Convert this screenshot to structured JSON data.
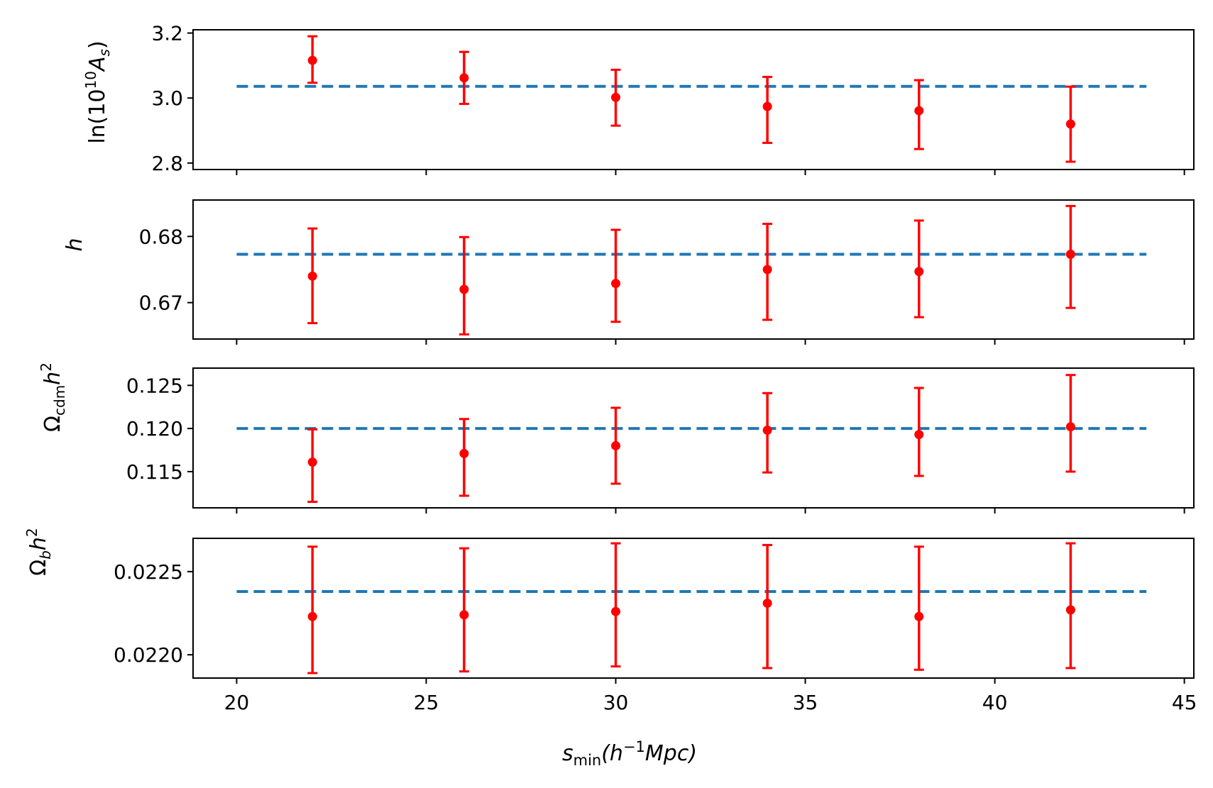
{
  "chart_data": [
    {
      "type": "scatter",
      "ylabel_parts": [
        "ln(10",
        "10",
        "A",
        "s",
        ")"
      ],
      "ylim": [
        2.78,
        3.21
      ],
      "yticks": [
        2.8,
        3.0,
        3.2
      ],
      "ytick_labels": [
        "2.8",
        "3.0",
        "3.2"
      ],
      "x": [
        22,
        26,
        30,
        34,
        38,
        42
      ],
      "values": [
        3.116,
        3.062,
        3.002,
        2.974,
        2.961,
        2.92
      ],
      "err_low": [
        3.047,
        2.982,
        2.915,
        2.862,
        2.843,
        2.804
      ],
      "err_high": [
        3.19,
        3.142,
        3.087,
        3.065,
        3.055,
        3.035
      ],
      "reference": 3.036,
      "xticks_labeled": false
    },
    {
      "type": "scatter",
      "ylabel_parts": [
        "h"
      ],
      "ylim": [
        0.6645,
        0.6855
      ],
      "yticks": [
        0.67,
        0.68
      ],
      "ytick_labels": [
        "0.67",
        "0.68"
      ],
      "x": [
        22,
        26,
        30,
        34,
        38,
        42
      ],
      "values": [
        0.674,
        0.672,
        0.6729,
        0.675,
        0.6747,
        0.6773
      ],
      "err_low": [
        0.6669,
        0.6652,
        0.6671,
        0.6674,
        0.6678,
        0.6692
      ],
      "err_high": [
        0.6812,
        0.6799,
        0.681,
        0.6819,
        0.6824,
        0.6846
      ],
      "reference": 0.6773,
      "xticks_labeled": false
    },
    {
      "type": "scatter",
      "ylabel_parts": [
        "Ω",
        "cdm",
        "h",
        "2"
      ],
      "ylim": [
        0.1108,
        0.127
      ],
      "yticks": [
        0.115,
        0.12,
        0.125
      ],
      "ytick_labels": [
        "0.115",
        "0.120",
        "0.125"
      ],
      "x": [
        22,
        26,
        30,
        34,
        38,
        42
      ],
      "values": [
        0.1161,
        0.1171,
        0.118,
        0.1198,
        0.1193,
        0.1202
      ],
      "err_low": [
        0.1115,
        0.1122,
        0.1136,
        0.1149,
        0.1145,
        0.115
      ],
      "err_high": [
        0.1199,
        0.1211,
        0.1224,
        0.1241,
        0.1247,
        0.1262
      ],
      "reference": 0.12,
      "xticks_labeled": false
    },
    {
      "type": "scatter",
      "ylabel_parts": [
        "Ω",
        "b",
        "h",
        "2"
      ],
      "ylim": [
        0.02186,
        0.0227
      ],
      "yticks": [
        0.022,
        0.0225
      ],
      "ytick_labels": [
        "0.0220",
        "0.0225"
      ],
      "x": [
        22,
        26,
        30,
        34,
        38,
        42
      ],
      "values": [
        0.02223,
        0.02224,
        0.02226,
        0.02231,
        0.02223,
        0.02227
      ],
      "err_low": [
        0.02189,
        0.0219,
        0.02193,
        0.02192,
        0.02191,
        0.02192
      ],
      "err_high": [
        0.02265,
        0.02264,
        0.02267,
        0.02266,
        0.02265,
        0.02267
      ],
      "reference": 0.02238,
      "xticks_labeled": true
    }
  ],
  "x_axis": {
    "xlim": [
      18.85,
      45.25
    ],
    "xticks": [
      20,
      25,
      30,
      35,
      40,
      45
    ],
    "xtick_labels": [
      "20",
      "25",
      "30",
      "35",
      "40",
      "45"
    ],
    "xlabel_parts": [
      "s",
      "min",
      "(h",
      "−1",
      "Mpc)"
    ]
  },
  "reference_line": {
    "x_start": 20,
    "x_end": 44
  },
  "colors": {
    "points": "#ff0000",
    "reference": "#1f77b4",
    "axes": "#000000"
  }
}
